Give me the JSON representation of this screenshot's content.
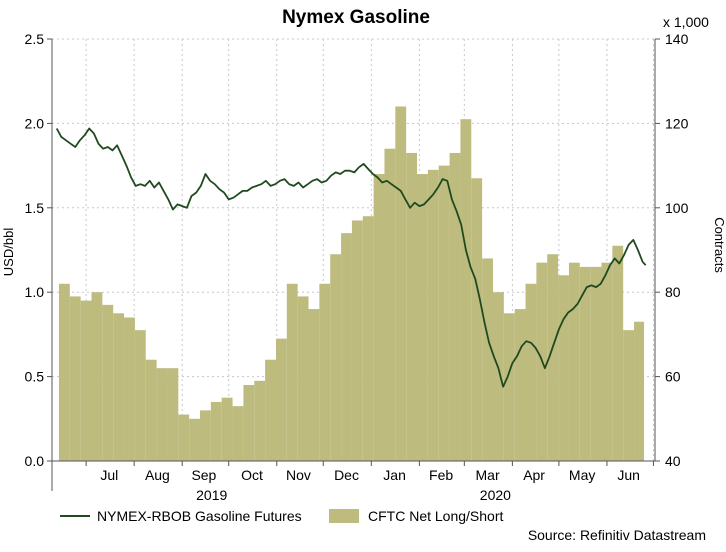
{
  "chart_data": {
    "type": "bar",
    "title": "Nymex Gasoline",
    "left_axis": {
      "label": "USD/bbl",
      "range": [
        0.0,
        2.5
      ],
      "ticks": [
        "0.0",
        "0.5",
        "1.0",
        "1.5",
        "2.0",
        "2.5"
      ]
    },
    "right_axis": {
      "label": "Contracts",
      "multiplier_label": "x 1,000",
      "range": [
        40,
        140
      ],
      "ticks": [
        "40",
        "60",
        "80",
        "100",
        "120",
        "140"
      ]
    },
    "x_axis": {
      "month_ticks": [
        "Jul",
        "Aug",
        "Sep",
        "Oct",
        "Nov",
        "Dec",
        "Jan",
        "Feb",
        "Mar",
        "Apr",
        "May",
        "Jun"
      ],
      "year_labels": [
        "2019",
        "2020"
      ]
    },
    "grid": true,
    "legend_position": "bottom",
    "source": "Source: Refinitiv Datastream",
    "series": [
      {
        "name": "CFTC Net Long/Short",
        "type": "bar",
        "axis": "right",
        "color": "#bdbb7e",
        "x": [
          "2019-06-18",
          "2019-06-25",
          "2019-07-02",
          "2019-07-09",
          "2019-07-16",
          "2019-07-23",
          "2019-07-30",
          "2019-08-06",
          "2019-08-13",
          "2019-08-20",
          "2019-08-27",
          "2019-09-03",
          "2019-09-10",
          "2019-09-17",
          "2019-09-24",
          "2019-10-01",
          "2019-10-08",
          "2019-10-15",
          "2019-10-22",
          "2019-10-29",
          "2019-11-05",
          "2019-11-12",
          "2019-11-19",
          "2019-11-26",
          "2019-12-03",
          "2019-12-10",
          "2019-12-17",
          "2019-12-24",
          "2019-12-31",
          "2020-01-07",
          "2020-01-14",
          "2020-01-21",
          "2020-01-28",
          "2020-02-04",
          "2020-02-11",
          "2020-02-18",
          "2020-02-25",
          "2020-03-03",
          "2020-03-10",
          "2020-03-17",
          "2020-03-24",
          "2020-03-31",
          "2020-04-07",
          "2020-04-14",
          "2020-04-21",
          "2020-04-28",
          "2020-05-05",
          "2020-05-12",
          "2020-05-19",
          "2020-05-26",
          "2020-06-02",
          "2020-06-09",
          "2020-06-16",
          "2020-06-23"
        ],
        "values": [
          82,
          79,
          78,
          80,
          77,
          75,
          74,
          71,
          64,
          62,
          62,
          51,
          50,
          52,
          54,
          55,
          53,
          58,
          59,
          64,
          69,
          82,
          79,
          76,
          82,
          89,
          94,
          97,
          98,
          108,
          114,
          124,
          113,
          108,
          109,
          110,
          113,
          121,
          107,
          88,
          80,
          75,
          76,
          82,
          87,
          89,
          84,
          87,
          86,
          86,
          87,
          91,
          71,
          73
        ]
      },
      {
        "name": "NYMEX-RBOB Gasoline Futures",
        "type": "line",
        "axis": "left",
        "color": "#1f4a1f",
        "points": [
          [
            "2019-06-12",
            1.97
          ],
          [
            "2019-06-15",
            1.92
          ],
          [
            "2019-06-18",
            1.9
          ],
          [
            "2019-06-21",
            1.88
          ],
          [
            "2019-06-24",
            1.86
          ],
          [
            "2019-06-27",
            1.9
          ],
          [
            "2019-06-30",
            1.93
          ],
          [
            "2019-07-03",
            1.97
          ],
          [
            "2019-07-06",
            1.94
          ],
          [
            "2019-07-09",
            1.88
          ],
          [
            "2019-07-12",
            1.85
          ],
          [
            "2019-07-15",
            1.86
          ],
          [
            "2019-07-18",
            1.84
          ],
          [
            "2019-07-21",
            1.87
          ],
          [
            "2019-07-24",
            1.81
          ],
          [
            "2019-07-27",
            1.75
          ],
          [
            "2019-07-30",
            1.68
          ],
          [
            "2019-08-02",
            1.63
          ],
          [
            "2019-08-05",
            1.64
          ],
          [
            "2019-08-08",
            1.63
          ],
          [
            "2019-08-11",
            1.66
          ],
          [
            "2019-08-14",
            1.62
          ],
          [
            "2019-08-17",
            1.65
          ],
          [
            "2019-08-20",
            1.6
          ],
          [
            "2019-08-23",
            1.55
          ],
          [
            "2019-08-26",
            1.49
          ],
          [
            "2019-08-29",
            1.52
          ],
          [
            "2019-09-01",
            1.51
          ],
          [
            "2019-09-04",
            1.5
          ],
          [
            "2019-09-07",
            1.57
          ],
          [
            "2019-09-10",
            1.59
          ],
          [
            "2019-09-13",
            1.63
          ],
          [
            "2019-09-16",
            1.7
          ],
          [
            "2019-09-19",
            1.66
          ],
          [
            "2019-09-22",
            1.64
          ],
          [
            "2019-09-25",
            1.61
          ],
          [
            "2019-09-28",
            1.59
          ],
          [
            "2019-10-01",
            1.55
          ],
          [
            "2019-10-04",
            1.56
          ],
          [
            "2019-10-07",
            1.58
          ],
          [
            "2019-10-10",
            1.6
          ],
          [
            "2019-10-13",
            1.6
          ],
          [
            "2019-10-16",
            1.62
          ],
          [
            "2019-10-19",
            1.63
          ],
          [
            "2019-10-22",
            1.64
          ],
          [
            "2019-10-25",
            1.66
          ],
          [
            "2019-10-28",
            1.63
          ],
          [
            "2019-10-31",
            1.64
          ],
          [
            "2019-11-03",
            1.66
          ],
          [
            "2019-11-06",
            1.67
          ],
          [
            "2019-11-09",
            1.64
          ],
          [
            "2019-11-12",
            1.63
          ],
          [
            "2019-11-15",
            1.65
          ],
          [
            "2019-11-18",
            1.62
          ],
          [
            "2019-11-21",
            1.64
          ],
          [
            "2019-11-24",
            1.66
          ],
          [
            "2019-11-27",
            1.67
          ],
          [
            "2019-11-30",
            1.65
          ],
          [
            "2019-12-03",
            1.66
          ],
          [
            "2019-12-06",
            1.69
          ],
          [
            "2019-12-09",
            1.71
          ],
          [
            "2019-12-12",
            1.7
          ],
          [
            "2019-12-15",
            1.72
          ],
          [
            "2019-12-18",
            1.72
          ],
          [
            "2019-12-21",
            1.71
          ],
          [
            "2019-12-24",
            1.74
          ],
          [
            "2019-12-27",
            1.76
          ],
          [
            "2019-12-30",
            1.73
          ],
          [
            "2020-01-02",
            1.7
          ],
          [
            "2020-01-05",
            1.68
          ],
          [
            "2020-01-08",
            1.65
          ],
          [
            "2020-01-11",
            1.66
          ],
          [
            "2020-01-14",
            1.64
          ],
          [
            "2020-01-17",
            1.62
          ],
          [
            "2020-01-20",
            1.6
          ],
          [
            "2020-01-23",
            1.55
          ],
          [
            "2020-01-26",
            1.5
          ],
          [
            "2020-01-29",
            1.53
          ],
          [
            "2020-02-01",
            1.51
          ],
          [
            "2020-02-04",
            1.52
          ],
          [
            "2020-02-07",
            1.55
          ],
          [
            "2020-02-10",
            1.58
          ],
          [
            "2020-02-13",
            1.62
          ],
          [
            "2020-02-16",
            1.67
          ],
          [
            "2020-02-19",
            1.66
          ],
          [
            "2020-02-22",
            1.55
          ],
          [
            "2020-02-25",
            1.48
          ],
          [
            "2020-02-28",
            1.4
          ],
          [
            "2020-03-02",
            1.25
          ],
          [
            "2020-03-05",
            1.15
          ],
          [
            "2020-03-08",
            1.08
          ],
          [
            "2020-03-11",
            0.96
          ],
          [
            "2020-03-14",
            0.82
          ],
          [
            "2020-03-17",
            0.7
          ],
          [
            "2020-03-20",
            0.62
          ],
          [
            "2020-03-23",
            0.55
          ],
          [
            "2020-03-26",
            0.44
          ],
          [
            "2020-03-29",
            0.5
          ],
          [
            "2020-04-01",
            0.58
          ],
          [
            "2020-04-04",
            0.62
          ],
          [
            "2020-04-07",
            0.68
          ],
          [
            "2020-04-10",
            0.71
          ],
          [
            "2020-04-13",
            0.7
          ],
          [
            "2020-04-16",
            0.67
          ],
          [
            "2020-04-19",
            0.62
          ],
          [
            "2020-04-22",
            0.55
          ],
          [
            "2020-04-25",
            0.62
          ],
          [
            "2020-04-28",
            0.7
          ],
          [
            "2020-05-01",
            0.78
          ],
          [
            "2020-05-04",
            0.84
          ],
          [
            "2020-05-07",
            0.88
          ],
          [
            "2020-05-10",
            0.9
          ],
          [
            "2020-05-13",
            0.93
          ],
          [
            "2020-05-16",
            0.98
          ],
          [
            "2020-05-19",
            1.03
          ],
          [
            "2020-05-22",
            1.04
          ],
          [
            "2020-05-25",
            1.03
          ],
          [
            "2020-05-28",
            1.05
          ],
          [
            "2020-05-31",
            1.1
          ],
          [
            "2020-06-03",
            1.16
          ],
          [
            "2020-06-06",
            1.2
          ],
          [
            "2020-06-09",
            1.17
          ],
          [
            "2020-06-12",
            1.22
          ],
          [
            "2020-06-15",
            1.28
          ],
          [
            "2020-06-18",
            1.31
          ],
          [
            "2020-06-21",
            1.25
          ],
          [
            "2020-06-24",
            1.18
          ],
          [
            "2020-06-26",
            1.16
          ]
        ]
      }
    ]
  }
}
